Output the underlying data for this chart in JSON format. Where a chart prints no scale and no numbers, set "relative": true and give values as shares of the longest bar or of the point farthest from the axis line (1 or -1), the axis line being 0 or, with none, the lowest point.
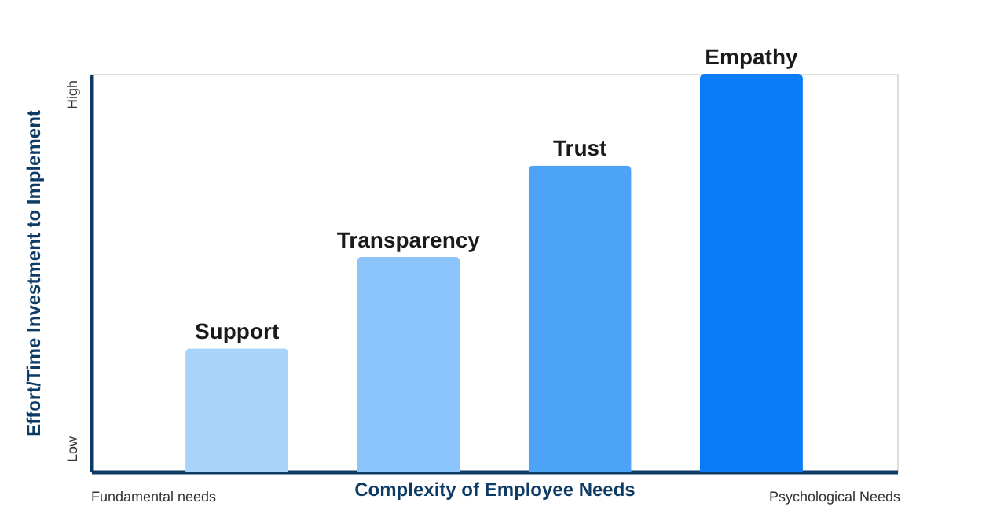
{
  "chart_data": {
    "type": "bar",
    "relative": true,
    "xlabel": "Complexity of Employee Needs",
    "ylabel": "Effort/Time Investment to Implement",
    "categories": [
      "Support",
      "Transparency",
      "Trust",
      "Empathy"
    ],
    "values": [
      0.31,
      0.54,
      0.77,
      1
    ],
    "colors": [
      "#a8d4fb",
      "#8ac4fb",
      "#4da3f7",
      "#0a7cf5"
    ],
    "annotations": [
      "Low",
      "High",
      "Fundamental needs",
      "Psychological Needs"
    ],
    "grid": false
  }
}
